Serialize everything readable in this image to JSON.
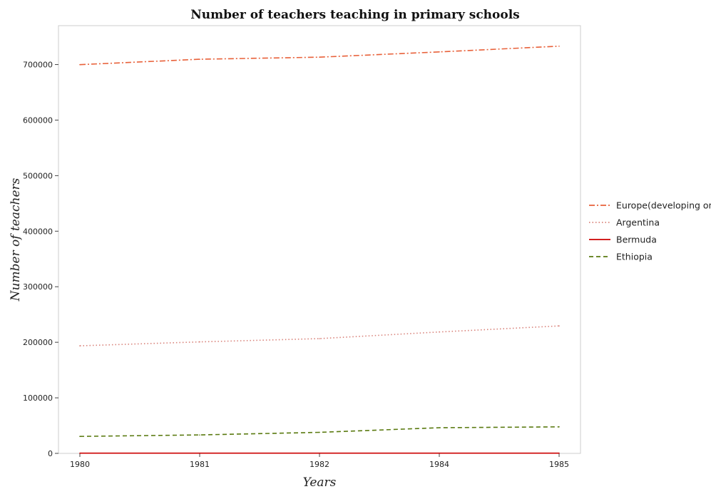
{
  "chart_data": {
    "type": "line",
    "title": "Number of teachers teaching in primary schools",
    "xlabel": "Years",
    "ylabel": "Number of teachers",
    "categories": [
      "1980",
      "1981",
      "1982",
      "1984",
      "1985"
    ],
    "ylim": [
      0,
      770000
    ],
    "yticks": [
      0,
      100000,
      200000,
      300000,
      400000,
      500000,
      600000,
      700000
    ],
    "ytick_labels": [
      "0",
      "100000",
      "200000",
      "300000",
      "400000",
      "500000",
      "600000",
      "700000"
    ],
    "grid": false,
    "legend_position": "right",
    "series": [
      {
        "name": "Europe(developing only)",
        "color": "#e8613a",
        "dash": "dashdot",
        "values": [
          699800,
          709500,
          713300,
          722800,
          733000
        ]
      },
      {
        "name": "Argentina",
        "color": "#d9827a",
        "dash": "dotted",
        "values": [
          193700,
          200700,
          206600,
          218600,
          229500
        ]
      },
      {
        "name": "Bermuda",
        "color": "#cc0000",
        "dash": "solid",
        "values": [
          370,
          380,
          390,
          400,
          410
        ]
      },
      {
        "name": "Ethiopia",
        "color": "#5a7a10",
        "dash": "dashed",
        "values": [
          30600,
          33200,
          37900,
          46200,
          47800
        ]
      }
    ]
  }
}
